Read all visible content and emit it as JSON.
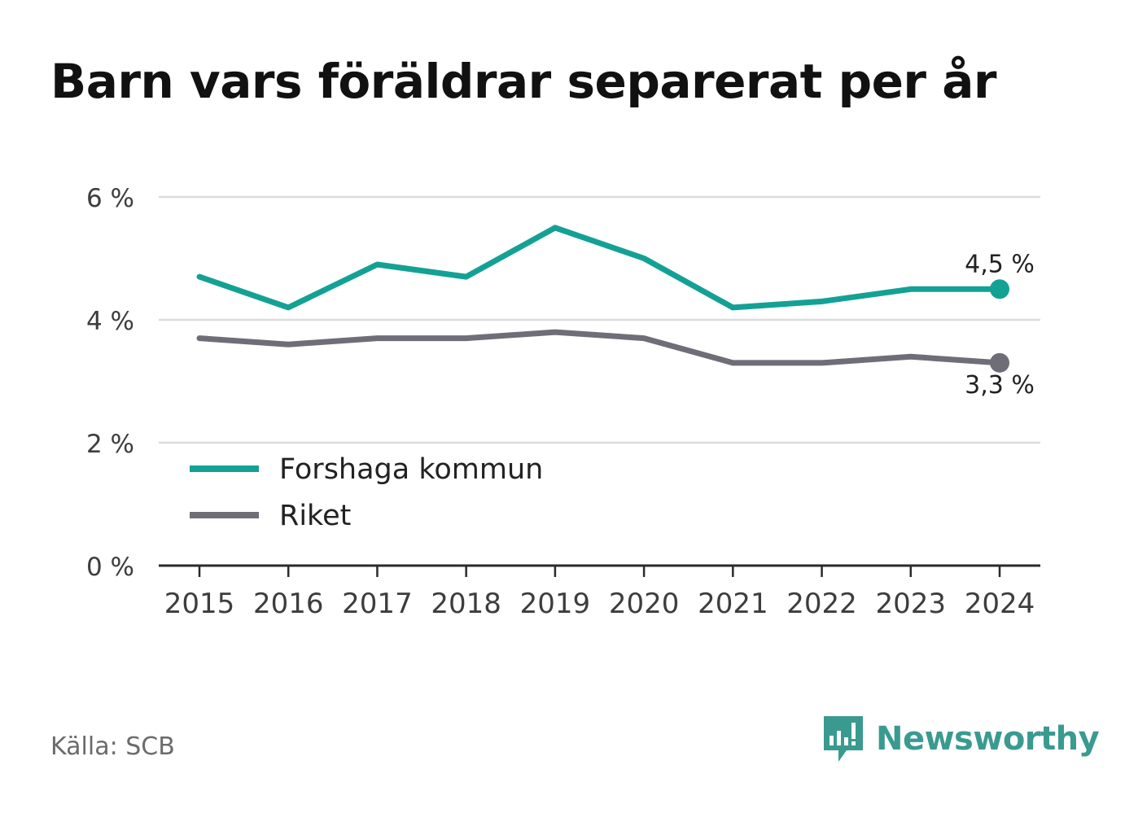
{
  "title": "Barn vars föräldrar separerat per år",
  "source": "Källa: SCB",
  "brand": {
    "name": "Newsworthy",
    "icon": "newsworthy-logo-icon",
    "color": "#3a9a90"
  },
  "chart_data": {
    "type": "line",
    "x": [
      "2015",
      "2016",
      "2017",
      "2018",
      "2019",
      "2020",
      "2021",
      "2022",
      "2023",
      "2024"
    ],
    "y_ticks": [
      0,
      2,
      4,
      6
    ],
    "y_tick_labels": [
      "0 %",
      "2 %",
      "4 %",
      "6 %"
    ],
    "ylim": [
      0,
      6
    ],
    "grid": true,
    "legend_position": "bottom-left",
    "series": [
      {
        "name": "Forshaga kommun",
        "color": "#14a195",
        "values": [
          4.7,
          4.2,
          4.9,
          4.7,
          5.5,
          5.0,
          4.2,
          4.3,
          4.5,
          4.5
        ],
        "end_label": "4,5 %"
      },
      {
        "name": "Riket",
        "color": "#6f6e78",
        "values": [
          3.7,
          3.6,
          3.7,
          3.7,
          3.8,
          3.7,
          3.3,
          3.3,
          3.4,
          3.3
        ],
        "end_label": "3,3 %"
      }
    ]
  }
}
